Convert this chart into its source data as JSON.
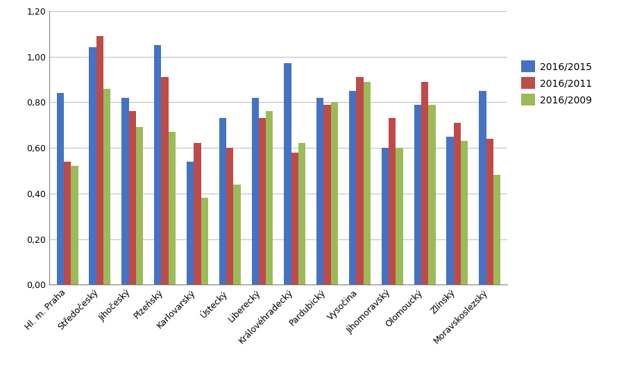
{
  "categories": [
    "Hl. m. Praha",
    "Středočeský",
    "Jihočeský",
    "Plzeňský",
    "Karlovarský",
    "Ústecký",
    "Liberecký",
    "Královéhradecký",
    "Pardubický",
    "Vysočina",
    "Jihomoravský",
    "Olomoucký",
    "Zlínský",
    "Moravskoslezský"
  ],
  "series": {
    "2016/2015": [
      0.84,
      1.04,
      0.82,
      1.05,
      0.54,
      0.73,
      0.82,
      0.97,
      0.82,
      0.85,
      0.6,
      0.79,
      0.65,
      0.85
    ],
    "2016/2011": [
      0.54,
      1.09,
      0.76,
      0.91,
      0.62,
      0.6,
      0.73,
      0.58,
      0.79,
      0.91,
      0.73,
      0.89,
      0.71,
      0.64
    ],
    "2016/2009": [
      0.52,
      0.86,
      0.69,
      0.67,
      0.38,
      0.44,
      0.76,
      0.62,
      0.8,
      0.89,
      0.6,
      0.79,
      0.63,
      0.48
    ]
  },
  "colors": {
    "2016/2015": "#4472C4",
    "2016/2011": "#BE4B48",
    "2016/2009": "#9BBB59"
  },
  "ylim": [
    0.0,
    1.2
  ],
  "yticks": [
    0.0,
    0.2,
    0.4,
    0.6,
    0.8,
    1.0,
    1.2
  ],
  "bar_width": 0.22,
  "legend_labels": [
    "2016/2015",
    "2016/2011",
    "2016/2009"
  ],
  "background_color": "#FFFFFF",
  "grid_color": "#C0C0C0",
  "axis_color": "#808080"
}
